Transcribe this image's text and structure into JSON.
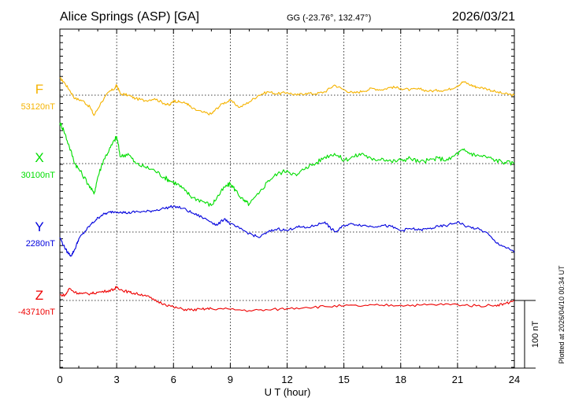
{
  "header": {
    "station": "Alice Springs (ASP)  [GA]",
    "coords": "GG (-23.76°, 132.47°)",
    "date": "2026/03/21"
  },
  "footer": {
    "plotted": "Plotted at 2026/04/10 00:34 UT"
  },
  "chart_data": {
    "type": "line",
    "title": "Alice Springs (ASP)  [GA]",
    "xlabel": "U T (hour)",
    "xlim": [
      0,
      24
    ],
    "xticks": [
      0,
      3,
      6,
      9,
      12,
      15,
      18,
      21,
      24
    ],
    "xtick_labels": [
      "0",
      "3",
      "6",
      "9",
      "12",
      "15",
      "18",
      "21",
      "24"
    ],
    "scale_bar": {
      "label": "100 nT",
      "value_nT": 100
    },
    "grid": true,
    "series": [
      {
        "name": "F",
        "baseline_label": "53120nT",
        "baseline_nT": 53120,
        "color": "#f5b300",
        "x": [
          0,
          0.2,
          0.5,
          0.8,
          1.2,
          1.6,
          1.8,
          2.2,
          2.6,
          2.9,
          3.0,
          3.2,
          3.6,
          4.0,
          4.5,
          5.0,
          5.5,
          5.8,
          6.0,
          6.3,
          6.7,
          7.0,
          7.5,
          8.0,
          8.2,
          8.6,
          9.0,
          9.5,
          10.0,
          10.5,
          11.0,
          11.5,
          12.0,
          12.5,
          13.0,
          13.5,
          14.0,
          14.5,
          15.0,
          15.5,
          16.0,
          16.5,
          17.0,
          17.5,
          18.0,
          18.5,
          19.0,
          19.5,
          20.0,
          20.5,
          21.0,
          21.3,
          21.7,
          22.0,
          22.5,
          23.0,
          23.5,
          24.0
        ],
        "y": [
          25,
          20,
          8,
          -5,
          -8,
          -18,
          -30,
          -10,
          5,
          10,
          15,
          2,
          0,
          -5,
          -8,
          -5,
          -12,
          -15,
          -8,
          -10,
          -12,
          -20,
          -25,
          -28,
          -22,
          -12,
          -8,
          -18,
          -10,
          0,
          5,
          2,
          4,
          0,
          3,
          2,
          5,
          15,
          8,
          3,
          6,
          10,
          8,
          12,
          10,
          8,
          9,
          6,
          7,
          8,
          14,
          20,
          15,
          12,
          10,
          5,
          2,
          0
        ]
      },
      {
        "name": "X",
        "baseline_label": "30100nT",
        "baseline_nT": 30100,
        "color": "#00dd00",
        "x": [
          0,
          0.2,
          0.5,
          0.8,
          1.0,
          1.5,
          1.8,
          2.0,
          2.3,
          2.6,
          2.9,
          3.0,
          3.2,
          3.6,
          4.0,
          4.5,
          5.0,
          5.5,
          5.8,
          6.2,
          6.6,
          7.0,
          7.5,
          8.0,
          8.3,
          8.7,
          9.0,
          9.3,
          9.7,
          10.0,
          10.5,
          11.0,
          11.5,
          12.0,
          12.5,
          13.0,
          13.5,
          14.0,
          14.5,
          15.0,
          15.5,
          16.0,
          16.5,
          17.0,
          17.5,
          18.0,
          18.5,
          19.0,
          19.5,
          20.0,
          20.5,
          21.0,
          21.3,
          21.7,
          22.0,
          22.5,
          23.0,
          23.5,
          24.0
        ],
        "y": [
          60,
          50,
          25,
          0,
          -8,
          -30,
          -45,
          -20,
          5,
          20,
          35,
          40,
          10,
          15,
          0,
          -5,
          -10,
          -20,
          -25,
          -30,
          -40,
          -50,
          -55,
          -62,
          -50,
          -35,
          -30,
          -40,
          -55,
          -60,
          -45,
          -25,
          -15,
          -10,
          -18,
          -5,
          0,
          10,
          15,
          5,
          10,
          15,
          5,
          8,
          3,
          5,
          8,
          2,
          5,
          8,
          5,
          15,
          20,
          15,
          12,
          10,
          5,
          2,
          0
        ]
      },
      {
        "name": "Y",
        "baseline_label": "2280nT",
        "baseline_nT": 2280,
        "color": "#0000dd",
        "x": [
          0,
          0.2,
          0.4,
          0.6,
          0.8,
          1.0,
          1.3,
          1.6,
          1.9,
          2.2,
          2.5,
          2.8,
          3.2,
          3.6,
          4.0,
          4.5,
          5.0,
          5.5,
          6.0,
          6.5,
          7.0,
          7.5,
          8.0,
          8.3,
          8.7,
          9.0,
          9.5,
          10.0,
          10.5,
          11.0,
          11.5,
          12.0,
          12.5,
          13.0,
          13.5,
          14.0,
          14.3,
          14.6,
          15.0,
          15.5,
          16.0,
          16.5,
          17.0,
          17.5,
          18.0,
          18.5,
          19.0,
          19.5,
          20.0,
          20.5,
          21.0,
          21.5,
          22.0,
          22.5,
          23.0,
          23.5,
          24.0
        ],
        "y": [
          -8,
          -20,
          -30,
          -35,
          -25,
          -10,
          0,
          10,
          18,
          25,
          28,
          30,
          30,
          28,
          30,
          30,
          32,
          35,
          38,
          35,
          28,
          22,
          15,
          10,
          20,
          12,
          5,
          -2,
          -8,
          0,
          5,
          2,
          8,
          6,
          10,
          15,
          5,
          0,
          10,
          12,
          10,
          8,
          10,
          8,
          2,
          5,
          3,
          5,
          8,
          10,
          15,
          8,
          5,
          0,
          -15,
          -22,
          -30
        ]
      },
      {
        "name": "Z",
        "baseline_label": "-43710nT",
        "baseline_nT": -43710,
        "color": "#ee0000",
        "x": [
          0,
          0.3,
          0.5,
          0.8,
          1.2,
          1.6,
          2.0,
          2.5,
          2.9,
          3.0,
          3.3,
          3.7,
          4.0,
          4.5,
          5.0,
          5.5,
          6.0,
          6.5,
          7.0,
          7.5,
          8.0,
          9.0,
          10.0,
          11.0,
          12.0,
          13.0,
          14.0,
          15.0,
          16.0,
          17.0,
          18.0,
          19.0,
          20.0,
          21.0,
          22.0,
          23.0,
          23.5,
          24.0
        ],
        "y": [
          8,
          8,
          18,
          12,
          10,
          10,
          12,
          14,
          17,
          20,
          15,
          12,
          10,
          8,
          0,
          -5,
          -10,
          -13,
          -14,
          -13,
          -12,
          -13,
          -15,
          -14,
          -12,
          -10,
          -9,
          -8,
          -8,
          -7,
          -7,
          -7,
          -6,
          -6,
          -8,
          -7,
          -5,
          0
        ]
      }
    ]
  }
}
